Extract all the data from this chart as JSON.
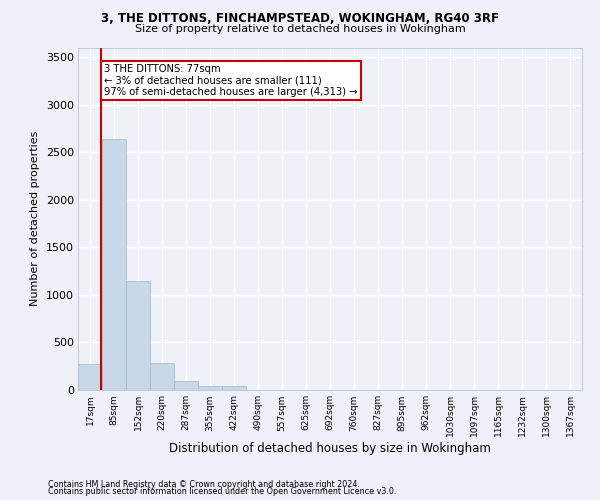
{
  "title1": "3, THE DITTONS, FINCHAMPSTEAD, WOKINGHAM, RG40 3RF",
  "title2": "Size of property relative to detached houses in Wokingham",
  "xlabel": "Distribution of detached houses by size in Wokingham",
  "ylabel": "Number of detached properties",
  "categories": [
    "17sqm",
    "85sqm",
    "152sqm",
    "220sqm",
    "287sqm",
    "355sqm",
    "422sqm",
    "490sqm",
    "557sqm",
    "625sqm",
    "692sqm",
    "760sqm",
    "827sqm",
    "895sqm",
    "962sqm",
    "1030sqm",
    "1097sqm",
    "1165sqm",
    "1232sqm",
    "1300sqm",
    "1367sqm"
  ],
  "bar_values": [
    270,
    2640,
    1150,
    280,
    90,
    40,
    40,
    0,
    0,
    0,
    0,
    0,
    0,
    0,
    0,
    0,
    0,
    0,
    0,
    0,
    0
  ],
  "bar_color": "#c8d8e8",
  "bar_edge_color": "#a0b8cc",
  "annotation_box_text": "3 THE DITTONS: 77sqm\n← 3% of detached houses are smaller (111)\n97% of semi-detached houses are larger (4,313) →",
  "vline_color": "#cc0000",
  "ylim": [
    0,
    3600
  ],
  "yticks": [
    0,
    500,
    1000,
    1500,
    2000,
    2500,
    3000,
    3500
  ],
  "bg_color": "#eef2f8",
  "grid_color": "#ffffff",
  "footnote1": "Contains HM Land Registry data © Crown copyright and database right 2024.",
  "footnote2": "Contains public sector information licensed under the Open Government Licence v3.0."
}
